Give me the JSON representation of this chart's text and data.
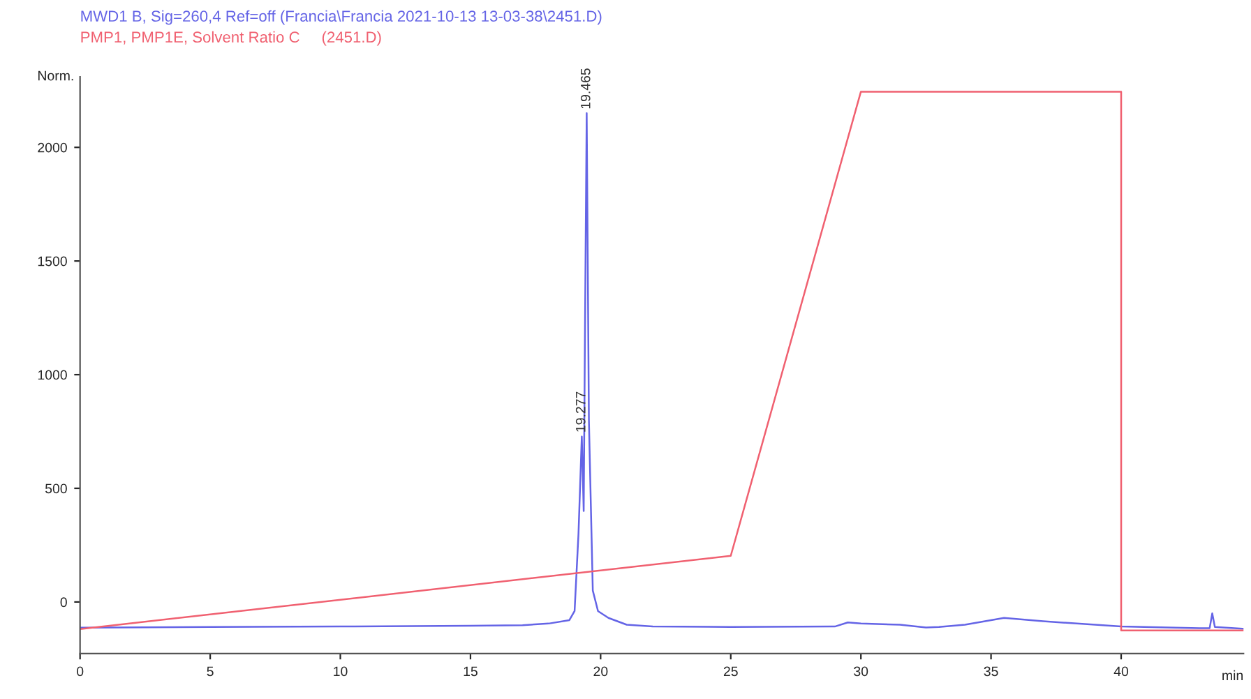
{
  "chart_data": {
    "type": "line",
    "title": "MWD1 B, Sig=260,4 Ref=off (Francia\\Francia 2021-10-13 13-03-38\\2451.D)",
    "subtitle": "PMP1, PMP1E, Solvent Ratio C     (2451.D)",
    "ylabel": "Norm.",
    "xlabel": "min",
    "xlim": [
      0,
      44.7
    ],
    "ylim": [
      -227,
      2310
    ],
    "xticks": [
      0,
      5,
      10,
      15,
      20,
      25,
      30,
      35,
      40
    ],
    "yticks": [
      0,
      500,
      1000,
      1500,
      2000
    ],
    "grid": false,
    "legend": false,
    "series": [
      {
        "color": "#6464e6",
        "x": [
          0,
          5,
          10,
          15,
          17,
          18,
          18.8,
          19.0,
          19.15,
          19.277,
          19.35,
          19.4,
          19.465,
          19.55,
          19.7,
          19.9,
          20.3,
          21,
          22,
          25,
          29,
          29.5,
          30,
          31.5,
          32.5,
          33,
          34,
          35.5,
          37,
          40,
          43,
          43.4,
          43.5,
          43.6,
          44.7
        ],
        "values": [
          -113,
          -110,
          -108,
          -105,
          -102,
          -95,
          -80,
          -40,
          300,
          728,
          400,
          1200,
          2150,
          800,
          50,
          -40,
          -70,
          -100,
          -108,
          -110,
          -108,
          -90,
          -95,
          -100,
          -112,
          -110,
          -100,
          -70,
          -85,
          -108,
          -115,
          -115,
          -50,
          -110,
          -118
        ]
      },
      {
        "color": "#f06070",
        "x": [
          0,
          25,
          30,
          40,
          40,
          44.7
        ],
        "values": [
          -119,
          203,
          2245,
          2245,
          -125,
          -125
        ]
      }
    ],
    "annotations": [
      {
        "text": "19.465",
        "x": 19.465,
        "y": 2150
      },
      {
        "text": "19.277",
        "x": 19.277,
        "y": 728
      }
    ]
  }
}
